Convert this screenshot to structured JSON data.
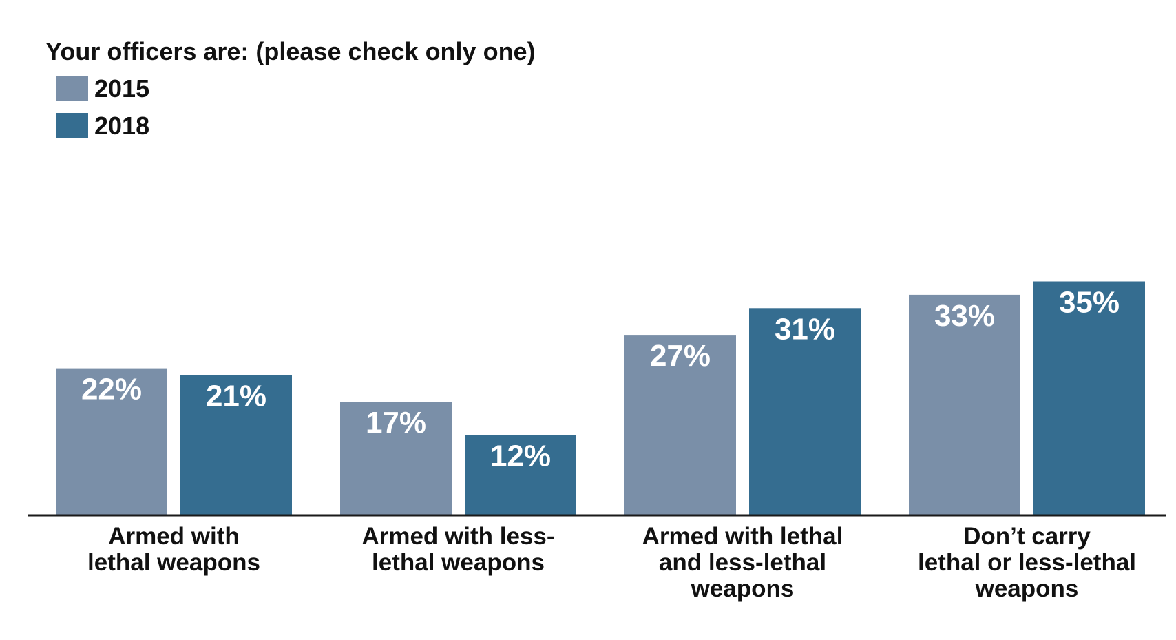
{
  "chart_data": {
    "type": "bar",
    "title": "Your officers are:  (please check only one)",
    "categories": [
      [
        "Armed with",
        "lethal weapons"
      ],
      [
        "Armed with less-",
        "lethal weapons"
      ],
      [
        "Armed with lethal",
        "and less-lethal",
        "weapons"
      ],
      [
        "Don’t carry",
        "lethal or less-lethal",
        "weapons"
      ]
    ],
    "series": [
      {
        "name": "2015",
        "color": "#7a8fa8",
        "values": [
          22,
          17,
          27,
          33
        ],
        "labels": [
          "22%",
          "17%",
          "27%",
          "33%"
        ]
      },
      {
        "name": "2018",
        "color": "#356d90",
        "values": [
          21,
          12,
          31,
          35
        ],
        "labels": [
          "21%",
          "12%",
          "31%",
          "35%"
        ]
      }
    ],
    "ylim": [
      0,
      36
    ],
    "grid": false,
    "legend_position": "top-left",
    "xlabel": "",
    "ylabel": ""
  }
}
